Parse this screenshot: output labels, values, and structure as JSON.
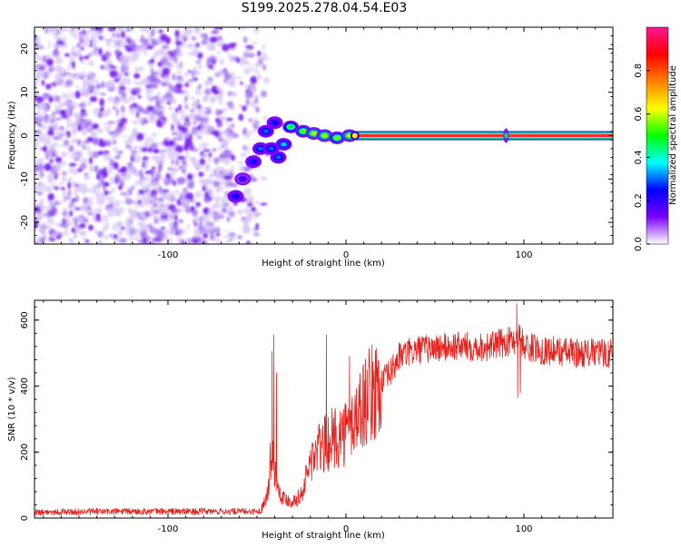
{
  "figure": {
    "title": "S199.2025.278.04.54.E03"
  },
  "chart_data": [
    {
      "type": "heatmap",
      "name": "spectrogram",
      "xlabel": "Height of straight line (km)",
      "ylabel": "Frequency (Hz)",
      "xlim": [
        -175,
        150
      ],
      "ylim": [
        -25,
        25
      ],
      "xticks": [
        -100,
        0,
        100
      ],
      "xtick_labels": [
        "-100",
        "0",
        "100"
      ],
      "yticks": [
        -20,
        -10,
        0,
        10,
        20
      ],
      "ytick_labels": [
        "-20",
        "-10",
        "0",
        "10",
        "20"
      ],
      "noise_region_x": [
        -175,
        -55
      ],
      "transition_blobs": [
        {
          "x": -62,
          "f": -14,
          "amp": 0.25
        },
        {
          "x": -58,
          "f": -10,
          "amp": 0.2
        },
        {
          "x": -52,
          "f": -6,
          "amp": 0.25
        },
        {
          "x": -48,
          "f": -3,
          "amp": 0.3
        },
        {
          "x": -45,
          "f": 1,
          "amp": 0.3
        },
        {
          "x": -40,
          "f": 3,
          "amp": 0.25
        },
        {
          "x": -42,
          "f": -3,
          "amp": 0.3
        },
        {
          "x": -38,
          "f": -5,
          "amp": 0.3
        },
        {
          "x": -35,
          "f": -2,
          "amp": 0.35
        },
        {
          "x": -31,
          "f": 2,
          "amp": 0.5
        },
        {
          "x": -24,
          "f": 1,
          "amp": 0.55
        },
        {
          "x": -18,
          "f": 0.5,
          "amp": 0.6
        },
        {
          "x": -12,
          "f": 0,
          "amp": 0.6
        },
        {
          "x": -5,
          "f": -0.5,
          "amp": 0.55
        },
        {
          "x": 2,
          "f": 0,
          "amp": 0.6
        }
      ],
      "carrier": {
        "x_start": 5,
        "x_end": 150,
        "frequency": 0,
        "amp": 0.97
      },
      "spur": {
        "x": 90,
        "f": 0
      },
      "colorbar": {
        "label": "Normalized spectral amplitude",
        "range": [
          0,
          1
        ],
        "ticks": [
          0.0,
          0.2,
          0.4,
          0.6,
          0.8
        ],
        "tick_labels": [
          "0.0",
          "0.2",
          "0.4",
          "0.6",
          "0.8"
        ],
        "colors": [
          "#ffffff",
          "#7a00ff",
          "#0000ff",
          "#00ffff",
          "#00ff00",
          "#ffff00",
          "#ff7f00",
          "#ff0000",
          "#ff1493"
        ]
      }
    },
    {
      "type": "line",
      "name": "snr",
      "xlabel": "Height of straight line (km)",
      "ylabel": "SNR (10 * v/v)",
      "xlim": [
        -175,
        150
      ],
      "ylim": [
        0,
        660
      ],
      "xticks": [
        -100,
        0,
        100
      ],
      "xtick_labels": [
        "-100",
        "0",
        "100"
      ],
      "yticks": [
        0,
        200,
        400,
        600
      ],
      "ytick_labels": [
        "0",
        "200",
        "400",
        "600"
      ],
      "color": "#e8201c",
      "trend": {
        "x": [
          -175,
          -130,
          -70,
          -48,
          -44,
          -42,
          -40,
          -38,
          -35,
          -30,
          -25,
          -22,
          -20,
          -15,
          -10,
          -5,
          0,
          5,
          10,
          15,
          20,
          25,
          30,
          40,
          60,
          80,
          95,
          97,
          100,
          110,
          130,
          150
        ],
        "y": [
          18,
          20,
          20,
          20,
          80,
          200,
          150,
          90,
          60,
          50,
          70,
          130,
          170,
          210,
          230,
          250,
          260,
          300,
          350,
          380,
          410,
          440,
          490,
          510,
          520,
          520,
          540,
          560,
          520,
          510,
          500,
          500
        ]
      },
      "spikes": [
        {
          "x": -40.5,
          "y": 555
        },
        {
          "x": -41.5,
          "y": 505
        },
        {
          "x": -39,
          "y": 440
        },
        {
          "x": -11,
          "y": 555
        },
        {
          "x": 2,
          "y": 490
        },
        {
          "x": 96,
          "y": 650
        },
        {
          "x": 98,
          "y": 380
        },
        {
          "x": 96.5,
          "y": 365
        }
      ]
    }
  ]
}
